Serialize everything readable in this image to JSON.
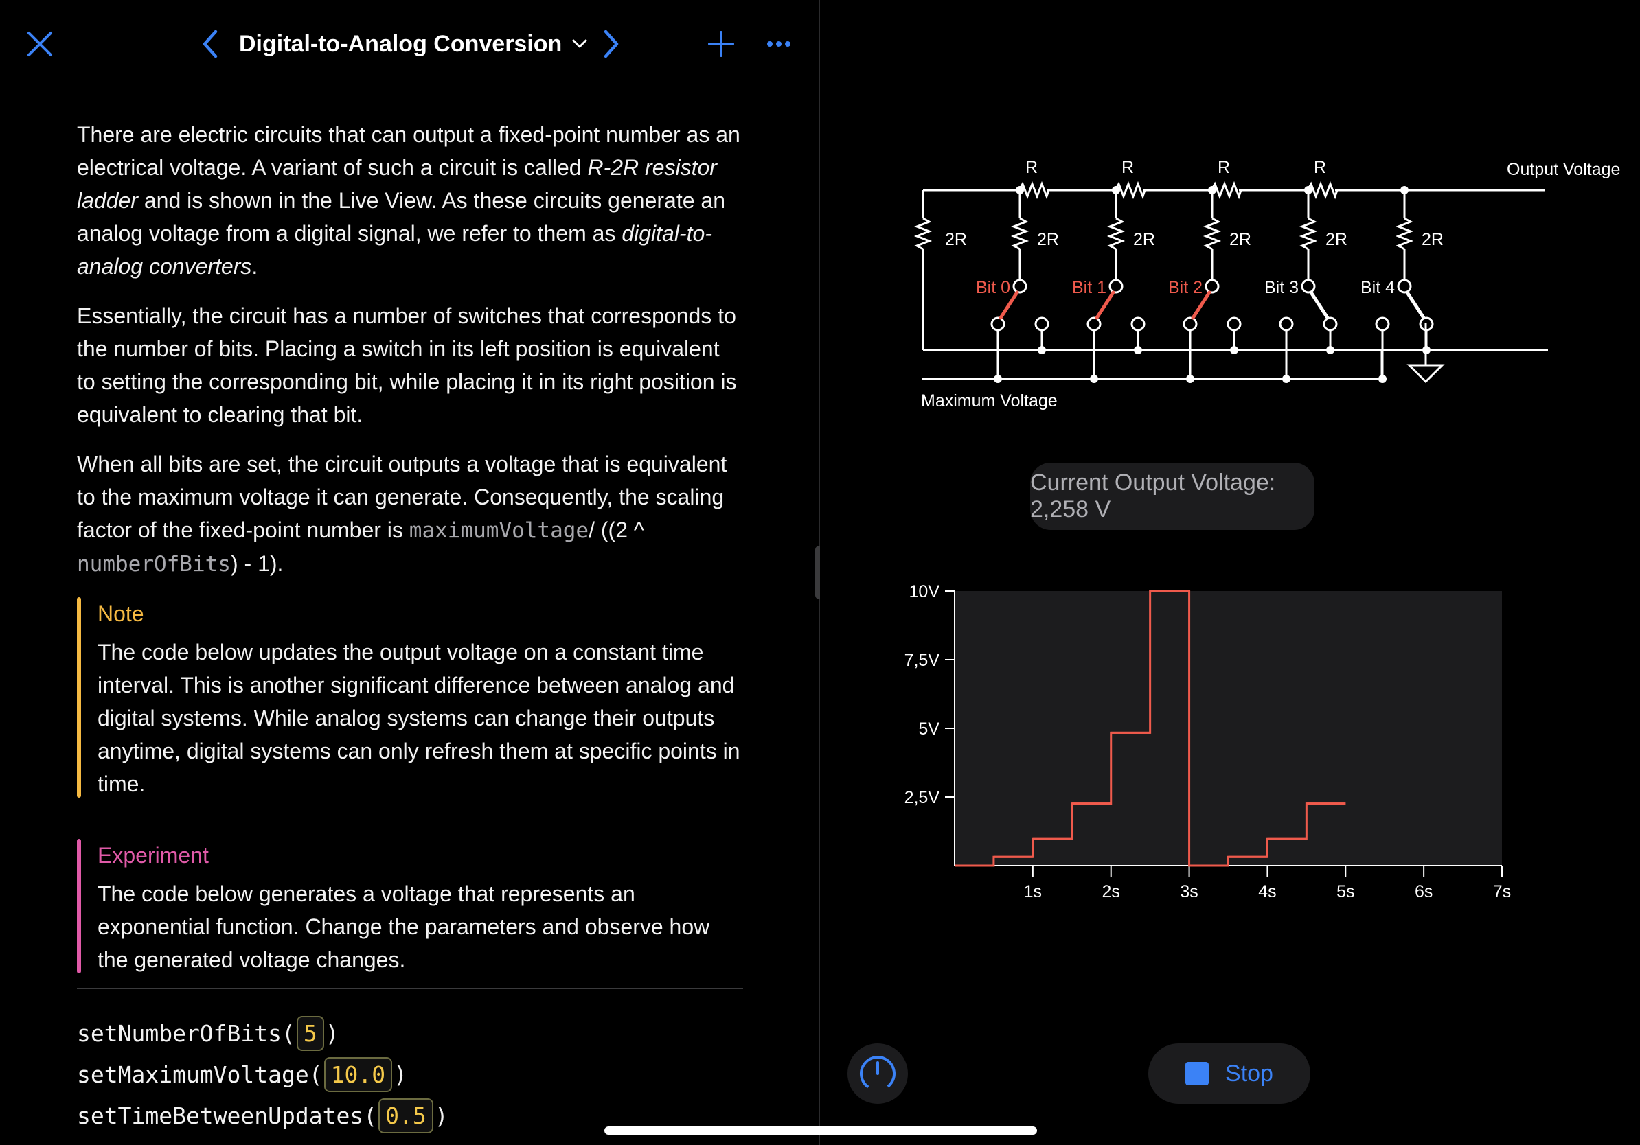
{
  "header": {
    "title": "Digital-to-Analog Conversion"
  },
  "content": {
    "p1_a": "There are electric circuits that can output a fixed-point number as an electrical voltage. A variant of such a circuit is called ",
    "p1_em1": "R-2R resistor ladder",
    "p1_b": " and is shown in the Live View. As these circuits generate an analog voltage from a digital signal, we refer to them as ",
    "p1_em2": "digital-to-analog converters",
    "p1_c": ".",
    "p2": "Essentially, the circuit has a number of switches that corresponds to the number of bits. Placing a switch in its left position is equivalent to setting the corresponding bit, while placing it in its right position is equivalent to clearing that bit.",
    "p3_a": "When all bits are set, the circuit outputs a voltage that is equivalent to the maximum voltage it can generate. Consequently, the scaling factor of the fixed-point number is ",
    "p3_code1": "maximumVoltage",
    "p3_b": "/ ((2 ^ ",
    "p3_code2": "numberOfBits",
    "p3_c": ") - 1).",
    "note_heading": "Note",
    "note_body": "The code below updates the output voltage on a constant time interval. This is another significant difference between analog and digital systems. While analog systems can change their outputs anytime, digital systems can only refresh them at specific points in time.",
    "experiment_heading": "Experiment",
    "experiment_body": "The code below generates a voltage that represents an exponential function. Change the parameters and observe how the generated voltage changes."
  },
  "code": [
    {
      "fn": "setNumberOfBits(",
      "value": "5",
      "close": ")"
    },
    {
      "fn": "setMaximumVoltage(",
      "value": "10.0",
      "close": ")"
    },
    {
      "fn": "setTimeBetweenUpdates(",
      "value": "0.5",
      "close": ")"
    }
  ],
  "circuit": {
    "resistor_series_label": "R",
    "resistor_shunt_label": "2R",
    "output_label": "Output Voltage",
    "input_label": "Maximum Voltage",
    "bits": [
      {
        "label": "Bit 0",
        "set": true
      },
      {
        "label": "Bit 1",
        "set": true
      },
      {
        "label": "Bit 2",
        "set": true
      },
      {
        "label": "Bit 3",
        "set": false
      },
      {
        "label": "Bit 4",
        "set": false
      }
    ],
    "active_color": "#ef5a4c"
  },
  "status": {
    "output_voltage": "Current Output Voltage: 2,258 V"
  },
  "controls": {
    "gauge_icon": "speedometer-icon",
    "stop_label": "Stop"
  },
  "chart_data": {
    "type": "line",
    "step": true,
    "x_ticks": [
      "1s",
      "2s",
      "3s",
      "4s",
      "5s",
      "6s",
      "7s"
    ],
    "y_ticks": [
      "2,5V",
      "5V",
      "7,5V",
      "10V"
    ],
    "xlim": [
      0,
      7
    ],
    "ylim": [
      0,
      10
    ],
    "series": [
      {
        "color": "#ef5a4c",
        "x": [
          0,
          0.5,
          1.0,
          1.5,
          2.0,
          2.5,
          3.0,
          3.5,
          4.0,
          4.5,
          5.0
        ],
        "y": [
          0,
          0.32,
          0.97,
          2.26,
          4.84,
          10.0,
          0,
          0.32,
          0.97,
          2.26,
          2.26
        ]
      }
    ]
  }
}
